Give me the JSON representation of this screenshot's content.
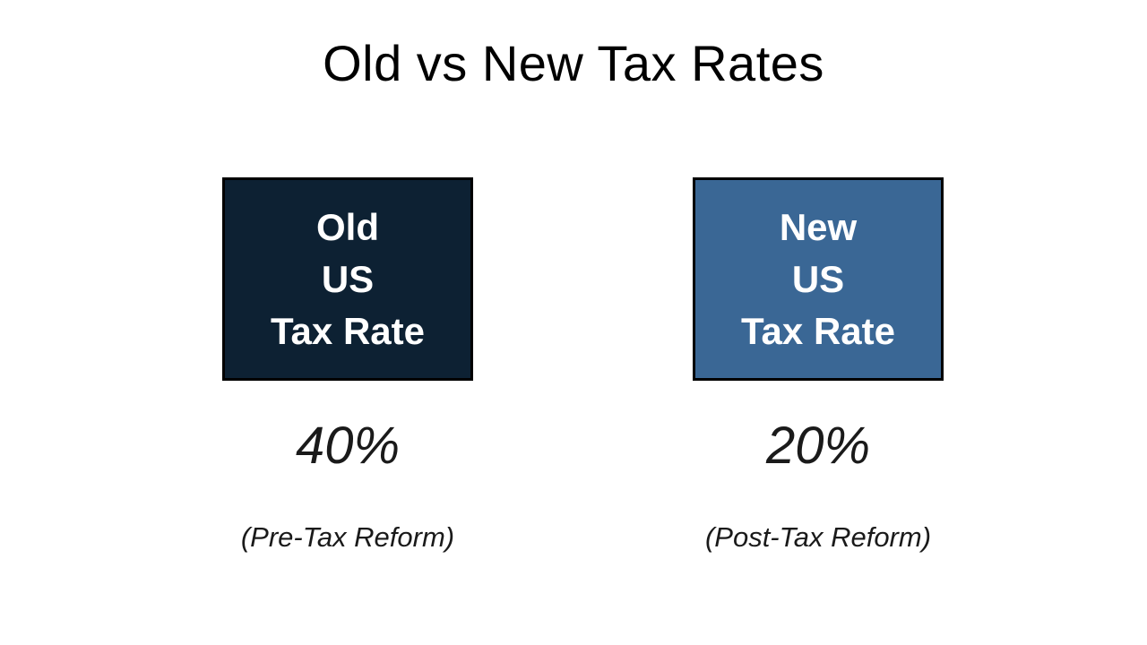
{
  "title": "Old vs New Tax Rates",
  "colors": {
    "background": "#ffffff",
    "box_border": "#000000",
    "box_text": "#ffffff",
    "title_text": "#000000",
    "body_text": "#1a1a1a",
    "old_box_fill": "#0d2133",
    "new_box_fill": "#3a6795"
  },
  "columns": [
    {
      "name": "old",
      "box_lines": [
        "Old",
        "US",
        "Tax Rate"
      ],
      "rate": "40%",
      "caption": "(Pre-Tax Reform)",
      "box_color": "#0d2133"
    },
    {
      "name": "new",
      "box_lines": [
        "New",
        "US",
        "Tax Rate"
      ],
      "rate": "20%",
      "caption": "(Post-Tax Reform)",
      "box_color": "#3a6795"
    }
  ]
}
